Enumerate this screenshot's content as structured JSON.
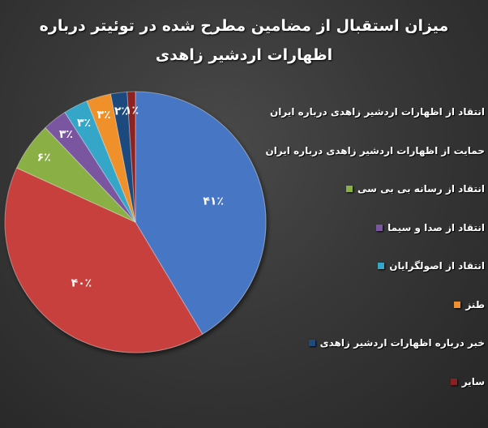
{
  "chart_data": {
    "type": "pie",
    "title_lines": [
      "میزان استقبال از مضامین مطرح شده در توئیتر درباره",
      "اظهارات اردشیر زاهدی"
    ],
    "slices": [
      {
        "label": "انتقاد از اظهارات اردشیر زاهدی درباره ایران",
        "value": 41,
        "display": "۴۱٪",
        "color": "#4677c4"
      },
      {
        "label": "حمایت از اظهارات اردشیر زاهدی درباره ایران",
        "value": 40,
        "display": "۴۰٪",
        "color": "#c8403c"
      },
      {
        "label": "انتقاد از  رسانه بی بی سی",
        "value": 6,
        "display": "۶٪",
        "color": "#8aaf45"
      },
      {
        "label": "انتقاد از صدا و سیما",
        "value": 3,
        "display": "۳٪",
        "color": "#7a55a0"
      },
      {
        "label": "انتقاد از اصولگرایان",
        "value": 3,
        "display": "۳٪",
        "color": "#36a6c8"
      },
      {
        "label": "طنز",
        "value": 3,
        "display": "۳٪",
        "color": "#f0902a"
      },
      {
        "label": "خبر درباره اظهارات اردشیر زاهدی",
        "value": 2,
        "display": "۲٪",
        "color": "#1f4a7e"
      },
      {
        "label": "سایر",
        "value": 1,
        "display": "۱٪",
        "color": "#8c2020"
      }
    ],
    "legend_position": "right"
  }
}
